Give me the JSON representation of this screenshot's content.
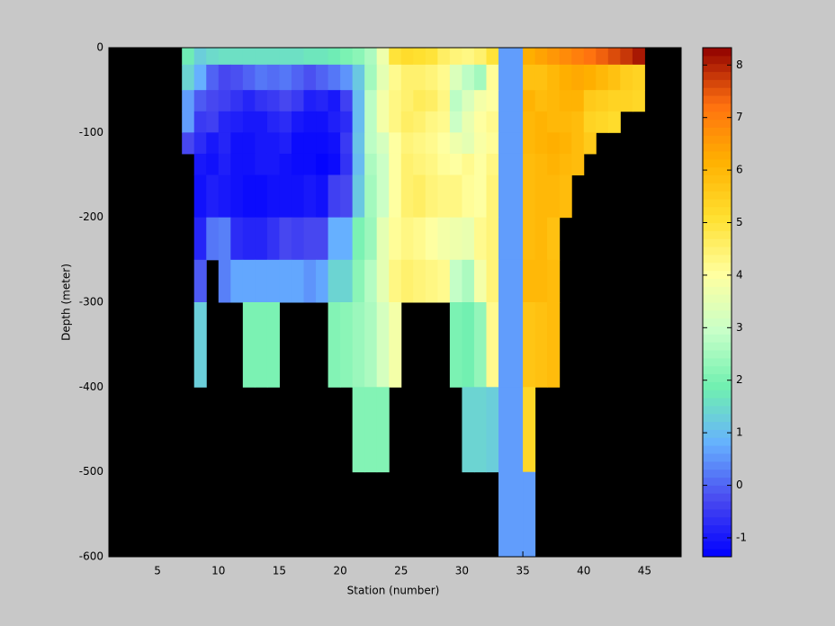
{
  "chart_data": {
    "type": "heatmap",
    "xlabel": "Station (number)",
    "ylabel": "Depth (meter)",
    "xbins": [
      7,
      8,
      9,
      10,
      11,
      12,
      13,
      14,
      15,
      16,
      17,
      18,
      19,
      20,
      21,
      22,
      23,
      24,
      25,
      26,
      27,
      28,
      29,
      30,
      31,
      32,
      33,
      34,
      35,
      36,
      37,
      38,
      39,
      40,
      41,
      42,
      43,
      44,
      45
    ],
    "ybins": [
      0,
      -20,
      -50,
      -75,
      -100,
      -125,
      -150,
      -200,
      -250,
      -300,
      -400,
      -500,
      -600
    ],
    "values": [
      [
        1.8,
        1.3,
        1.5,
        1.6,
        1.6,
        1.6,
        1.6,
        1.6,
        1.6,
        1.6,
        1.7,
        1.7,
        1.8,
        2.0,
        2.2,
        2.6,
        3.7,
        5.0,
        5.2,
        5.1,
        5.0,
        4.6,
        4.4,
        4.3,
        4.5,
        5.0,
        0.6,
        0.6,
        6.2,
        6.4,
        6.6,
        6.8,
        7.0,
        7.2,
        7.4,
        7.6,
        7.8,
        8.1
      ],
      [
        1.4,
        0.8,
        0.0,
        -0.3,
        -0.2,
        0.0,
        0.2,
        0.1,
        0.2,
        0.0,
        -0.2,
        0.0,
        0.2,
        0.5,
        1.2,
        2.5,
        3.5,
        4.2,
        4.5,
        4.5,
        4.4,
        4.2,
        3.3,
        2.8,
        2.5,
        4.1,
        0.6,
        0.6,
        5.8,
        5.8,
        6.0,
        6.2,
        6.3,
        6.2,
        6.0,
        5.8,
        5.5,
        5.4
      ],
      [
        0.6,
        -0.1,
        -0.3,
        -0.4,
        -0.6,
        -0.8,
        -0.6,
        -0.5,
        -0.3,
        -0.5,
        -0.9,
        -0.8,
        -1.0,
        -0.4,
        1.0,
        2.8,
        3.8,
        4.3,
        4.5,
        4.7,
        4.6,
        4.3,
        2.8,
        3.3,
        3.8,
        4.0,
        0.6,
        0.6,
        6.1,
        5.9,
        6.0,
        6.1,
        6.1,
        5.6,
        5.5,
        5.4,
        5.4,
        5.3
      ],
      [
        0.6,
        -0.5,
        -0.4,
        -0.8,
        -0.9,
        -1.0,
        -1.0,
        -0.8,
        -0.7,
        -1.0,
        -1.1,
        -1.1,
        -0.9,
        -0.7,
        1.0,
        2.8,
        3.8,
        4.3,
        4.6,
        4.5,
        4.3,
        4.2,
        3.0,
        3.6,
        4.0,
        4.2,
        0.6,
        0.6,
        6.0,
        6.1,
        6.0,
        6.0,
        5.9,
        5.4,
        5.3,
        5.2,
        null,
        null
      ],
      [
        -0.3,
        -0.7,
        -1.0,
        -0.8,
        -1.1,
        -1.1,
        -1.0,
        -1.0,
        -0.9,
        -1.2,
        -1.2,
        -1.2,
        -1.1,
        -0.5,
        1.1,
        2.8,
        3.2,
        4.0,
        4.4,
        4.3,
        4.2,
        4.0,
        3.7,
        3.5,
        3.9,
        4.1,
        0.6,
        0.6,
        6.0,
        6.1,
        6.2,
        6.1,
        5.9,
        5.6,
        null,
        null,
        null,
        null
      ],
      [
        null,
        -1.0,
        -1.1,
        -0.9,
        -1.1,
        -1.1,
        -1.0,
        -1.0,
        -1.1,
        -1.2,
        -1.2,
        -1.3,
        -1.2,
        -0.6,
        1.0,
        2.6,
        3.0,
        4.0,
        4.5,
        4.4,
        4.3,
        4.1,
        4.0,
        4.2,
        4.0,
        4.3,
        0.6,
        0.6,
        5.9,
        6.0,
        6.1,
        6.0,
        5.9,
        null,
        null,
        null,
        null,
        null
      ],
      [
        null,
        -1.1,
        -0.9,
        -1.0,
        -1.1,
        -1.2,
        -1.2,
        -1.1,
        -1.1,
        -1.1,
        -1.0,
        -1.1,
        -0.4,
        -0.3,
        1.2,
        2.5,
        3.0,
        4.0,
        4.5,
        4.6,
        4.4,
        4.3,
        4.3,
        4.1,
        4.0,
        4.4,
        0.6,
        0.6,
        5.9,
        6.0,
        6.0,
        5.9,
        null,
        null,
        null,
        null,
        null,
        null
      ],
      [
        null,
        -0.8,
        0.2,
        0.3,
        -0.7,
        -0.8,
        -0.8,
        -0.6,
        -0.3,
        -0.4,
        -0.3,
        -0.3,
        0.8,
        0.8,
        2.0,
        2.4,
        3.5,
        4.1,
        4.3,
        4.2,
        4.0,
        3.8,
        3.7,
        3.6,
        4.2,
        4.4,
        0.6,
        0.6,
        5.9,
        6.0,
        5.8,
        null,
        null,
        null,
        null,
        null,
        null,
        null
      ],
      [
        null,
        -0.1,
        null,
        0.3,
        0.7,
        0.7,
        0.7,
        0.7,
        0.7,
        0.7,
        0.5,
        0.7,
        1.4,
        1.4,
        2.2,
        2.7,
        3.5,
        4.3,
        4.5,
        4.4,
        4.3,
        4.2,
        2.9,
        2.6,
        3.8,
        4.4,
        0.6,
        0.6,
        6.0,
        6.0,
        5.9,
        null,
        null,
        null,
        null,
        null,
        null,
        null
      ],
      [
        null,
        1.3,
        null,
        null,
        null,
        2.0,
        2.0,
        2.0,
        null,
        null,
        null,
        null,
        2.1,
        2.2,
        2.4,
        2.6,
        3.2,
        3.8,
        null,
        null,
        null,
        null,
        2.0,
        1.9,
        2.3,
        4.2,
        0.6,
        0.6,
        5.7,
        5.8,
        5.9,
        null,
        null,
        null,
        null,
        null,
        null,
        null
      ],
      [
        null,
        null,
        null,
        null,
        null,
        null,
        null,
        null,
        null,
        null,
        null,
        null,
        null,
        null,
        2.1,
        2.1,
        2.1,
        null,
        null,
        null,
        null,
        null,
        null,
        1.4,
        1.4,
        1.3,
        0.6,
        0.6,
        5.3,
        null,
        null,
        null,
        null,
        null,
        null,
        null,
        null,
        null
      ],
      [
        null,
        null,
        null,
        null,
        null,
        null,
        null,
        null,
        null,
        null,
        null,
        null,
        null,
        null,
        null,
        null,
        null,
        null,
        null,
        null,
        null,
        null,
        null,
        null,
        null,
        null,
        0.6,
        0.6,
        0.6,
        null,
        null,
        null,
        null,
        null,
        null,
        null,
        null,
        null
      ]
    ],
    "xlim": [
      1,
      48
    ],
    "ylim": [
      -600,
      0
    ],
    "xticks": [
      5,
      10,
      15,
      20,
      25,
      30,
      35,
      40,
      45
    ],
    "yticks": [
      0,
      -100,
      -200,
      -300,
      -400,
      -500,
      -600
    ],
    "background": "#000000",
    "colorbar": {
      "clim": [
        -1.36,
        8.33
      ],
      "ticks": [
        -1,
        0,
        1,
        2,
        3,
        4,
        5,
        6,
        7,
        8
      ],
      "colormap": [
        "#0000ff",
        "#4848f0",
        "#66b0ff",
        "#70f0b0",
        "#c8ffc8",
        "#ffffa0",
        "#ffe030",
        "#ffb000",
        "#ff7010",
        "#900000"
      ]
    }
  }
}
